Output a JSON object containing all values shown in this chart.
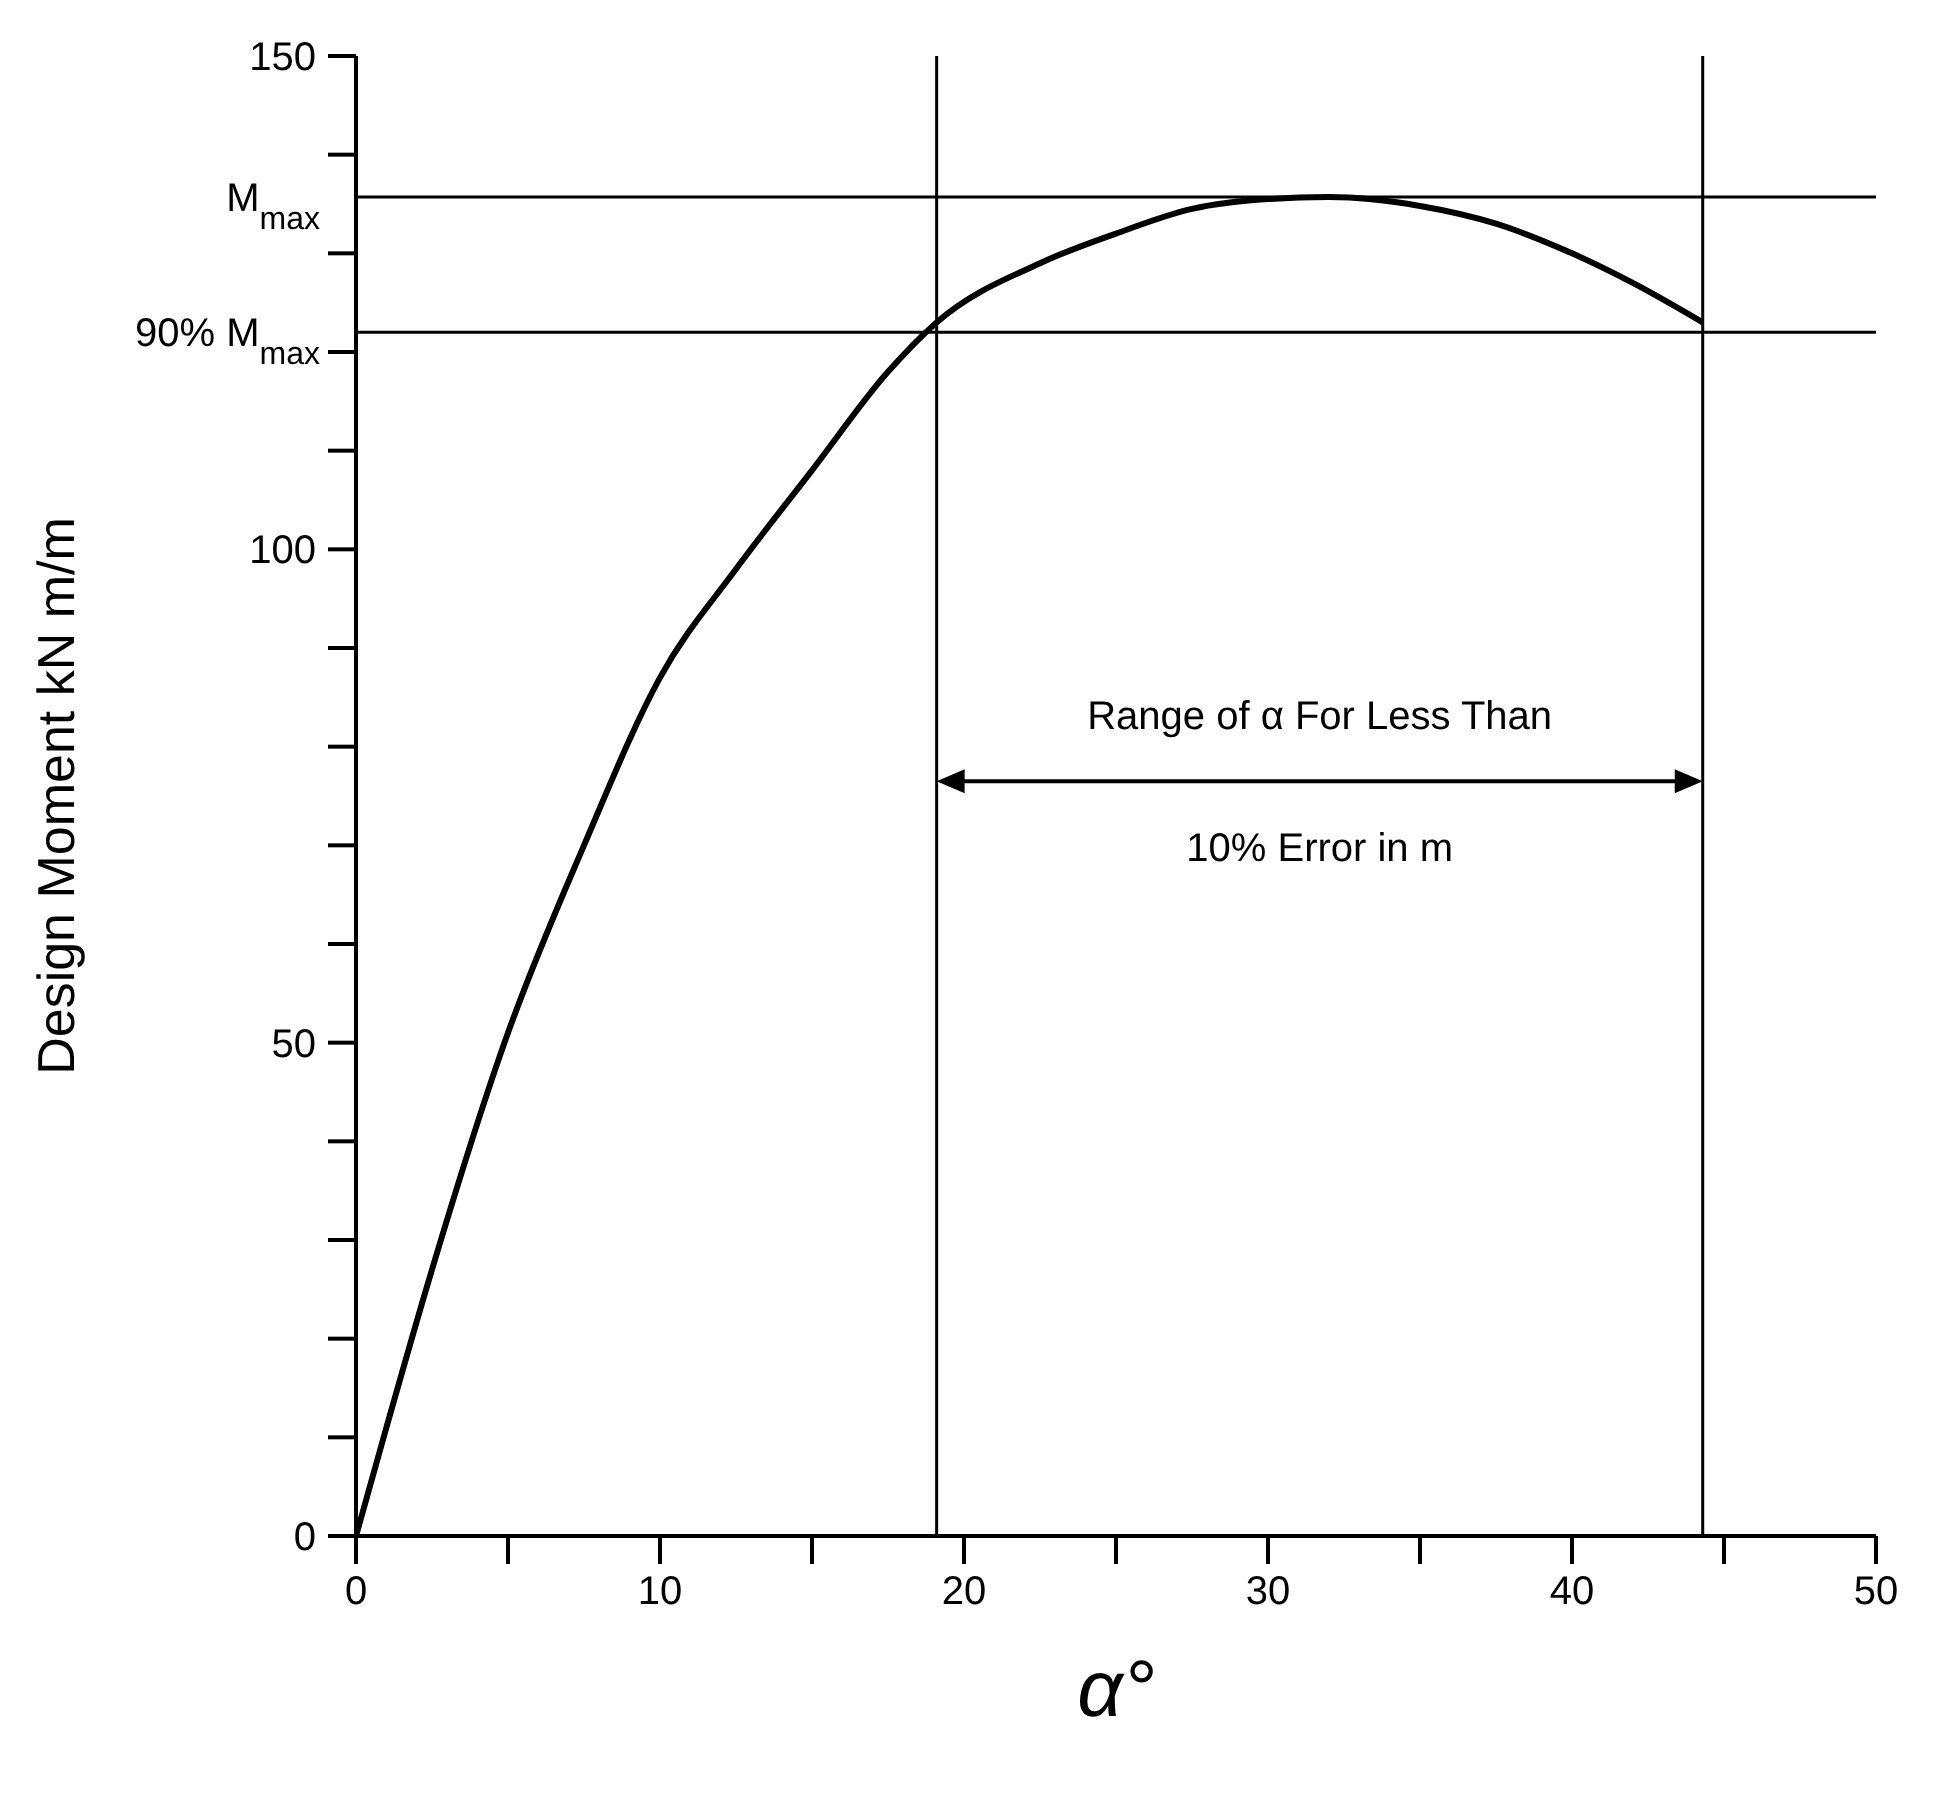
{
  "chart_data": {
    "type": "line",
    "xlabel": "α°",
    "ylabel": "Design Moment kN m/m",
    "series": [
      {
        "color": "#000000",
        "x": [
          0,
          1,
          2.5,
          5,
          7.5,
          10,
          12.5,
          15,
          17.5,
          19.1,
          22.5,
          25,
          27.5,
          30,
          32,
          35,
          37.5,
          40,
          42,
          44.3
        ],
        "values": [
          0,
          11,
          27,
          51,
          70,
          87,
          98,
          108,
          118,
          123,
          129,
          132,
          134.5,
          135.5,
          135.7,
          134.8,
          133,
          130,
          127,
          123
        ]
      }
    ],
    "xlim": [
      0,
      50
    ],
    "ylim": [
      0,
      150
    ],
    "xticks": [
      0,
      {
        "value": 5,
        "label": null
      },
      10,
      {
        "value": 15,
        "label": null
      },
      20,
      {
        "value": 25,
        "label": null
      },
      30,
      {
        "value": 35,
        "label": null
      },
      40,
      {
        "value": 45,
        "label": null
      },
      50
    ],
    "yticks": [
      0,
      {
        "value": 10,
        "label": null
      },
      {
        "value": 20,
        "label": null
      },
      {
        "value": 30,
        "label": null
      },
      {
        "value": 40,
        "label": null
      },
      50,
      {
        "value": 60,
        "label": null
      },
      {
        "value": 70,
        "label": null
      },
      {
        "value": 80,
        "label": null
      },
      {
        "value": 90,
        "label": null
      },
      100,
      {
        "value": 110,
        "label": null
      },
      {
        "value": 120,
        "label": null
      },
      {
        "value": 130,
        "label": null
      },
      {
        "value": 140,
        "label": null
      },
      150
    ],
    "ref_lines": [
      {
        "axis": "y",
        "value": 135.7,
        "label": "M$_{max}$"
      },
      {
        "axis": "y",
        "value": 122,
        "label": "90% M$_{max}$"
      },
      {
        "axis": "x",
        "value": 19.1
      },
      {
        "axis": "x",
        "value": 44.3
      }
    ],
    "annotations": [
      "Range of α For Less Than",
      "10% Error in m"
    ],
    "grid": false,
    "marker": "none",
    "line_style": "solid"
  }
}
